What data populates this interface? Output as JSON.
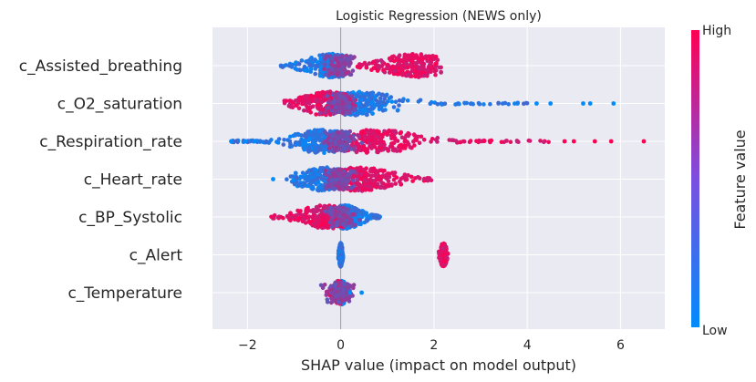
{
  "chart_data": {
    "type": "scatter",
    "title": "Logistic Regression (NEWS only)",
    "xlabel": "SHAP value (impact on model output)",
    "xlim": [
      -2.75,
      6.95
    ],
    "x_ticks": [
      -2,
      0,
      2,
      4,
      6
    ],
    "x_tick_labels": [
      "−2",
      "0",
      "2",
      "4",
      "6"
    ],
    "grid": true,
    "colorbar": {
      "label": "Feature value",
      "high_label": "High",
      "low_label": "Low",
      "high_color": "#ff0052",
      "low_color": "#008bfb"
    },
    "features": [
      {
        "name": "c_Assisted_breathing",
        "low": {
          "x": [
            -1.3,
            0.05
          ],
          "center": -0.2,
          "spread": 0.45
        },
        "high": {
          "x": [
            0.3,
            2.15
          ],
          "center": 1.6,
          "spread": 0.6
        },
        "outliers": []
      },
      {
        "name": "c_O2_saturation",
        "low": {
          "x": [
            -0.2,
            4.0
          ],
          "center": 0.3,
          "spread": 0.8
        },
        "high": {
          "x": [
            -1.25,
            0.3
          ],
          "center": -0.3,
          "spread": 0.5
        },
        "outliers": [
          {
            "x": 4.2,
            "tone": "low"
          },
          {
            "x": 4.5,
            "tone": "low"
          },
          {
            "x": 5.2,
            "tone": "low"
          },
          {
            "x": 5.35,
            "tone": "low"
          },
          {
            "x": 5.85,
            "tone": "low"
          }
        ]
      },
      {
        "name": "c_Respiration_rate",
        "low": {
          "x": [
            -2.35,
            0.2
          ],
          "center": -0.4,
          "spread": 0.5
        },
        "high": {
          "x": [
            0.1,
            4.6
          ],
          "center": 0.7,
          "spread": 0.8
        },
        "outliers": [
          {
            "x": -2.35,
            "tone": "low"
          },
          {
            "x": -2.05,
            "tone": "low"
          },
          {
            "x": -1.85,
            "tone": "low"
          },
          {
            "x": 4.8,
            "tone": "high"
          },
          {
            "x": 5.0,
            "tone": "high"
          },
          {
            "x": 5.45,
            "tone": "high"
          },
          {
            "x": 5.8,
            "tone": "high"
          },
          {
            "x": 6.5,
            "tone": "high"
          }
        ]
      },
      {
        "name": "c_Heart_rate",
        "low": {
          "x": [
            -1.2,
            0.1
          ],
          "center": -0.3,
          "spread": 0.55
        },
        "high": {
          "x": [
            0.0,
            1.95
          ],
          "center": 0.4,
          "spread": 0.65
        },
        "outliers": [
          {
            "x": -1.45,
            "tone": "low"
          }
        ]
      },
      {
        "name": "c_BP_Systolic",
        "low": {
          "x": [
            0.0,
            0.85
          ],
          "center": 0.1,
          "spread": 0.3
        },
        "high": {
          "x": [
            -1.5,
            0.05
          ],
          "center": -0.3,
          "spread": 0.5
        },
        "outliers": []
      },
      {
        "name": "c_Alert",
        "low": {
          "x": [
            -0.05,
            0.05
          ],
          "center": 0.0,
          "spread": 0.03
        },
        "high": {
          "x": [
            2.1,
            2.3
          ],
          "center": 2.2,
          "spread": 0.06
        },
        "outliers": []
      },
      {
        "name": "c_Temperature",
        "low": {
          "x": [
            -0.05,
            0.2
          ],
          "center": 0.03,
          "spread": 0.08
        },
        "high": {
          "x": [
            -0.3,
            0.05
          ],
          "center": -0.05,
          "spread": 0.1
        },
        "outliers": [
          {
            "x": 0.45,
            "tone": "low"
          },
          {
            "x": 0.2,
            "tone": "low"
          }
        ]
      }
    ]
  }
}
